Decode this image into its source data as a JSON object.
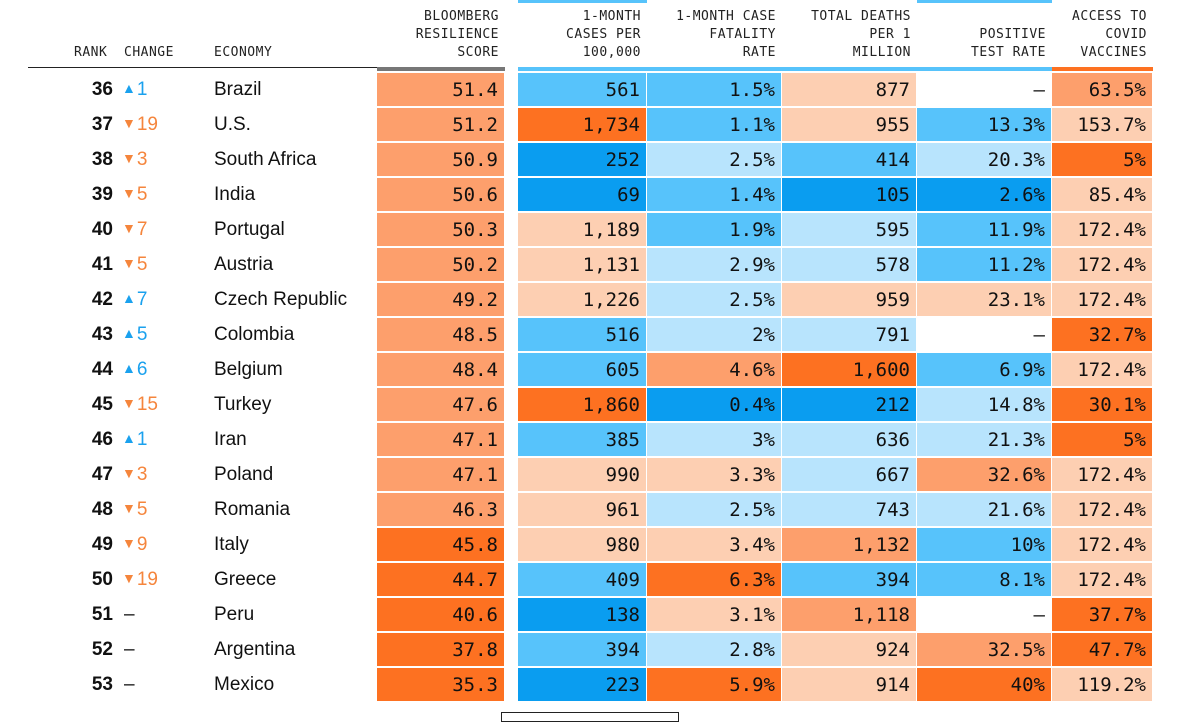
{
  "chart_data": {
    "type": "table",
    "headers": {
      "rank": "RANK",
      "change": "CHANGE",
      "economy": "ECONOMY",
      "resilience": [
        "BLOOMBERG",
        "RESILIENCE",
        "SCORE"
      ],
      "cases": [
        "1-MONTH",
        "CASES PER",
        "100,000"
      ],
      "fatality": [
        "1-MONTH CASE",
        "FATALITY",
        "RATE"
      ],
      "deaths": [
        "TOTAL DEATHS",
        "PER 1",
        "MILLION"
      ],
      "positive": [
        "POSITIVE",
        "TEST RATE"
      ],
      "vaccines": [
        "ACCESS TO",
        "COVID",
        "VACCINES"
      ]
    },
    "colors": {
      "blue_dark": "#0a9df0",
      "blue_mid": "#57c3fb",
      "blue_light": "#b8e4fd",
      "peach_light": "#fdcfb2",
      "peach_mid": "#fd9f6c",
      "orange_dark": "#fd7121",
      "up": "#1aa1ee",
      "down": "#f5853c",
      "rule": "#222222"
    },
    "rows": [
      {
        "rank": "36",
        "dir": "up",
        "change": "1",
        "economy": "Brazil",
        "score": "51.4",
        "score_c": "peach_mid",
        "cases": "561",
        "cases_c": "blue_mid",
        "fatality": "1.5%",
        "fatality_c": "blue_mid",
        "deaths": "877",
        "deaths_c": "peach_light",
        "positive": "–",
        "positive_c": "none",
        "vaccines": "63.5%",
        "vaccines_c": "peach_mid"
      },
      {
        "rank": "37",
        "dir": "down",
        "change": "19",
        "economy": "U.S.",
        "score": "51.2",
        "score_c": "peach_mid",
        "cases": "1,734",
        "cases_c": "orange_dark",
        "fatality": "1.1%",
        "fatality_c": "blue_mid",
        "deaths": "955",
        "deaths_c": "peach_light",
        "positive": "13.3%",
        "positive_c": "blue_mid",
        "vaccines": "153.7%",
        "vaccines_c": "peach_light"
      },
      {
        "rank": "38",
        "dir": "down",
        "change": "3",
        "economy": "South Africa",
        "score": "50.9",
        "score_c": "peach_mid",
        "cases": "252",
        "cases_c": "blue_dark",
        "fatality": "2.5%",
        "fatality_c": "blue_light",
        "deaths": "414",
        "deaths_c": "blue_mid",
        "positive": "20.3%",
        "positive_c": "blue_light",
        "vaccines": "5%",
        "vaccines_c": "orange_dark"
      },
      {
        "rank": "39",
        "dir": "down",
        "change": "5",
        "economy": "India",
        "score": "50.6",
        "score_c": "peach_mid",
        "cases": "69",
        "cases_c": "blue_dark",
        "fatality": "1.4%",
        "fatality_c": "blue_mid",
        "deaths": "105",
        "deaths_c": "blue_dark",
        "positive": "2.6%",
        "positive_c": "blue_dark",
        "vaccines": "85.4%",
        "vaccines_c": "peach_light"
      },
      {
        "rank": "40",
        "dir": "down",
        "change": "7",
        "economy": "Portugal",
        "score": "50.3",
        "score_c": "peach_mid",
        "cases": "1,189",
        "cases_c": "peach_light",
        "fatality": "1.9%",
        "fatality_c": "blue_mid",
        "deaths": "595",
        "deaths_c": "blue_light",
        "positive": "11.9%",
        "positive_c": "blue_mid",
        "vaccines": "172.4%",
        "vaccines_c": "peach_light"
      },
      {
        "rank": "41",
        "dir": "down",
        "change": "5",
        "economy": "Austria",
        "score": "50.2",
        "score_c": "peach_mid",
        "cases": "1,131",
        "cases_c": "peach_light",
        "fatality": "2.9%",
        "fatality_c": "blue_light",
        "deaths": "578",
        "deaths_c": "blue_light",
        "positive": "11.2%",
        "positive_c": "blue_mid",
        "vaccines": "172.4%",
        "vaccines_c": "peach_light"
      },
      {
        "rank": "42",
        "dir": "up",
        "change": "7",
        "economy": "Czech Republic",
        "score": "49.2",
        "score_c": "peach_mid",
        "cases": "1,226",
        "cases_c": "peach_light",
        "fatality": "2.5%",
        "fatality_c": "blue_light",
        "deaths": "959",
        "deaths_c": "peach_light",
        "positive": "23.1%",
        "positive_c": "peach_light",
        "vaccines": "172.4%",
        "vaccines_c": "peach_light"
      },
      {
        "rank": "43",
        "dir": "up",
        "change": "5",
        "economy": "Colombia",
        "score": "48.5",
        "score_c": "peach_mid",
        "cases": "516",
        "cases_c": "blue_mid",
        "fatality": "2%",
        "fatality_c": "blue_light",
        "deaths": "791",
        "deaths_c": "blue_light",
        "positive": "–",
        "positive_c": "none",
        "vaccines": "32.7%",
        "vaccines_c": "orange_dark"
      },
      {
        "rank": "44",
        "dir": "up",
        "change": "6",
        "economy": "Belgium",
        "score": "48.4",
        "score_c": "peach_mid",
        "cases": "605",
        "cases_c": "blue_mid",
        "fatality": "4.6%",
        "fatality_c": "peach_mid",
        "deaths": "1,600",
        "deaths_c": "orange_dark",
        "positive": "6.9%",
        "positive_c": "blue_mid",
        "vaccines": "172.4%",
        "vaccines_c": "peach_light"
      },
      {
        "rank": "45",
        "dir": "down",
        "change": "15",
        "economy": "Turkey",
        "score": "47.6",
        "score_c": "peach_mid",
        "cases": "1,860",
        "cases_c": "orange_dark",
        "fatality": "0.4%",
        "fatality_c": "blue_dark",
        "deaths": "212",
        "deaths_c": "blue_dark",
        "positive": "14.8%",
        "positive_c": "blue_light",
        "vaccines": "30.1%",
        "vaccines_c": "orange_dark"
      },
      {
        "rank": "46",
        "dir": "up",
        "change": "1",
        "economy": "Iran",
        "score": "47.1",
        "score_c": "peach_mid",
        "cases": "385",
        "cases_c": "blue_mid",
        "fatality": "3%",
        "fatality_c": "blue_light",
        "deaths": "636",
        "deaths_c": "blue_light",
        "positive": "21.3%",
        "positive_c": "blue_light",
        "vaccines": "5%",
        "vaccines_c": "orange_dark"
      },
      {
        "rank": "47",
        "dir": "down",
        "change": "3",
        "economy": "Poland",
        "score": "47.1",
        "score_c": "peach_mid",
        "cases": "990",
        "cases_c": "peach_light",
        "fatality": "3.3%",
        "fatality_c": "peach_light",
        "deaths": "667",
        "deaths_c": "blue_light",
        "positive": "32.6%",
        "positive_c": "peach_mid",
        "vaccines": "172.4%",
        "vaccines_c": "peach_light"
      },
      {
        "rank": "48",
        "dir": "down",
        "change": "5",
        "economy": "Romania",
        "score": "46.3",
        "score_c": "peach_mid",
        "cases": "961",
        "cases_c": "peach_light",
        "fatality": "2.5%",
        "fatality_c": "blue_light",
        "deaths": "743",
        "deaths_c": "blue_light",
        "positive": "21.6%",
        "positive_c": "blue_light",
        "vaccines": "172.4%",
        "vaccines_c": "peach_light"
      },
      {
        "rank": "49",
        "dir": "down",
        "change": "9",
        "economy": "Italy",
        "score": "45.8",
        "score_c": "orange_dark",
        "cases": "980",
        "cases_c": "peach_light",
        "fatality": "3.4%",
        "fatality_c": "peach_light",
        "deaths": "1,132",
        "deaths_c": "peach_mid",
        "positive": "10%",
        "positive_c": "blue_mid",
        "vaccines": "172.4%",
        "vaccines_c": "peach_light"
      },
      {
        "rank": "50",
        "dir": "down",
        "change": "19",
        "economy": "Greece",
        "score": "44.7",
        "score_c": "orange_dark",
        "cases": "409",
        "cases_c": "blue_mid",
        "fatality": "6.3%",
        "fatality_c": "orange_dark",
        "deaths": "394",
        "deaths_c": "blue_mid",
        "positive": "8.1%",
        "positive_c": "blue_mid",
        "vaccines": "172.4%",
        "vaccines_c": "peach_light"
      },
      {
        "rank": "51",
        "dir": "none",
        "change": "–",
        "economy": "Peru",
        "score": "40.6",
        "score_c": "orange_dark",
        "cases": "138",
        "cases_c": "blue_dark",
        "fatality": "3.1%",
        "fatality_c": "peach_light",
        "deaths": "1,118",
        "deaths_c": "peach_mid",
        "positive": "–",
        "positive_c": "none",
        "vaccines": "37.7%",
        "vaccines_c": "orange_dark"
      },
      {
        "rank": "52",
        "dir": "none",
        "change": "–",
        "economy": "Argentina",
        "score": "37.8",
        "score_c": "orange_dark",
        "cases": "394",
        "cases_c": "blue_mid",
        "fatality": "2.8%",
        "fatality_c": "blue_light",
        "deaths": "924",
        "deaths_c": "peach_light",
        "positive": "32.5%",
        "positive_c": "peach_mid",
        "vaccines": "47.7%",
        "vaccines_c": "orange_dark"
      },
      {
        "rank": "53",
        "dir": "none",
        "change": "–",
        "economy": "Mexico",
        "score": "35.3",
        "score_c": "orange_dark",
        "cases": "223",
        "cases_c": "blue_dark",
        "fatality": "5.9%",
        "fatality_c": "orange_dark",
        "deaths": "914",
        "deaths_c": "peach_light",
        "positive": "40%",
        "positive_c": "orange_dark",
        "vaccines": "119.2%",
        "vaccines_c": "peach_light"
      }
    ]
  }
}
